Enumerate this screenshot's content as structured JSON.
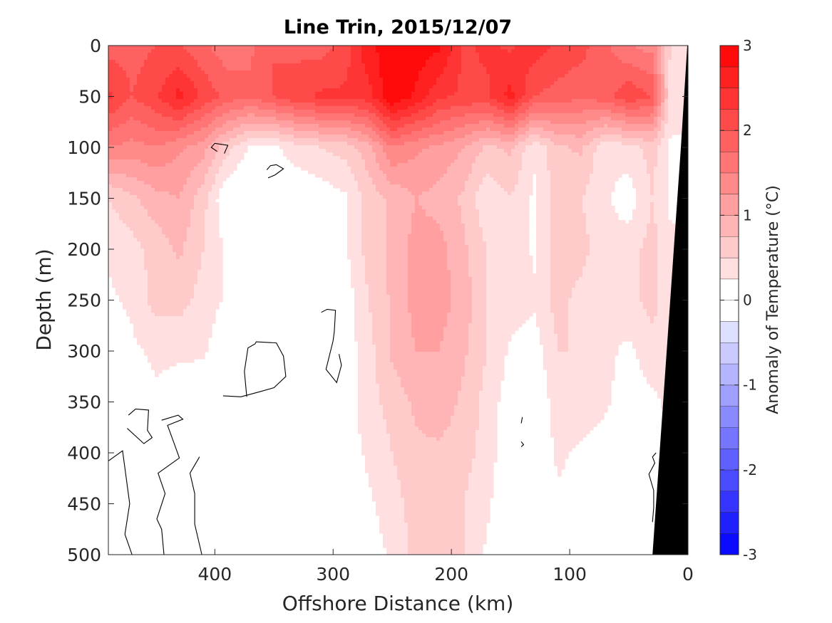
{
  "chart_data": {
    "type": "heatmap",
    "subtype": "filled-contour-section",
    "title": "Line Trin, 2015/12/07",
    "xlabel": "Offshore Distance (km)",
    "ylabel": "Depth (m)",
    "x_axis": {
      "reversed": true,
      "range": [
        490,
        0
      ],
      "ticks": [
        400,
        300,
        200,
        100,
        0
      ],
      "tick_labels": [
        "400",
        "300",
        "200",
        "100",
        "0"
      ]
    },
    "y_axis": {
      "reversed": true,
      "range": [
        0,
        500
      ],
      "ticks": [
        0,
        50,
        100,
        150,
        200,
        250,
        300,
        350,
        400,
        450,
        500
      ],
      "tick_labels": [
        "0",
        "50",
        "100",
        "150",
        "200",
        "250",
        "300",
        "350",
        "400",
        "450",
        "500"
      ]
    },
    "colorbar": {
      "label": "Anomaly of Temperature (°C)",
      "range": [
        -3,
        3
      ],
      "ticks": [
        3,
        2,
        1,
        0,
        -1,
        -2,
        -3
      ],
      "tick_labels": [
        "3",
        "2",
        "1",
        "0",
        "-1",
        "-2",
        "-3"
      ],
      "levels": [
        -3,
        -2.75,
        -2.5,
        -2.25,
        -2,
        -1.75,
        -1.5,
        -1.25,
        -1,
        -0.75,
        -0.5,
        -0.25,
        0,
        0.25,
        0.5,
        0.75,
        1,
        1.25,
        1.5,
        1.75,
        2,
        2.25,
        2.5,
        2.75,
        3
      ],
      "colormap": "blue-white-red"
    },
    "land_color": "#000000",
    "zero_contour_color": "#000000",
    "depths_m": [
      0,
      50,
      100,
      150,
      200,
      250,
      300,
      350,
      400,
      450,
      500
    ],
    "distances_km": [
      490,
      470,
      450,
      430,
      410,
      390,
      370,
      350,
      330,
      310,
      290,
      270,
      250,
      230,
      210,
      190,
      170,
      150,
      130,
      110,
      90,
      70,
      50,
      30,
      15
    ],
    "values_c": [
      [
        1.9,
        1.9,
        2.0,
        2.0,
        1.8,
        1.6,
        1.7,
        2.0,
        1.9,
        1.9,
        2.1,
        2.7,
        2.9,
        2.9,
        2.8,
        2.2,
        2.3,
        2.2,
        2.4,
        2.2,
        2.1,
        1.8,
        1.5,
        1.4,
        0.5
      ],
      [
        2.3,
        2.0,
        2.2,
        2.6,
        2.2,
        1.9,
        1.8,
        2.0,
        2.2,
        2.3,
        2.3,
        2.4,
        3.0,
        2.7,
        2.3,
        2.2,
        2.2,
        2.6,
        2.0,
        1.9,
        1.8,
        1.9,
        2.2,
        2.0,
        0.4
      ],
      [
        1.5,
        1.4,
        1.5,
        1.3,
        1.1,
        0.6,
        0.2,
        0.2,
        0.4,
        0.5,
        0.6,
        0.9,
        1.5,
        1.3,
        1.2,
        1.0,
        0.7,
        0.8,
        0.3,
        0.7,
        0.8,
        0.3,
        0.4,
        0.6,
        0.2
      ],
      [
        0.5,
        0.7,
        0.9,
        1.0,
        0.6,
        0.0,
        -0.1,
        0.0,
        0.0,
        0.1,
        0.2,
        0.6,
        0.8,
        1.0,
        0.9,
        0.7,
        0.3,
        0.5,
        0.2,
        0.6,
        0.5,
        0.3,
        0.1,
        0.5,
        0.2
      ],
      [
        0.3,
        0.4,
        0.6,
        0.8,
        0.5,
        0.2,
        0.1,
        0.0,
        0.0,
        0.1,
        0.2,
        0.6,
        0.8,
        1.1,
        1.1,
        0.8,
        0.5,
        0.5,
        0.2,
        0.6,
        0.6,
        0.3,
        0.4,
        0.6,
        0.3
      ],
      [
        0.2,
        0.3,
        0.6,
        0.6,
        0.4,
        0.2,
        0.1,
        0.0,
        0.0,
        0.1,
        0.1,
        0.5,
        0.8,
        1.1,
        1.1,
        0.9,
        0.5,
        0.4,
        0.3,
        0.6,
        0.4,
        0.3,
        0.4,
        0.6,
        0.3
      ],
      [
        0.1,
        0.2,
        0.3,
        0.3,
        0.3,
        0.0,
        0.1,
        -0.1,
        0.0,
        -0.1,
        0.1,
        0.4,
        0.8,
        1.0,
        1.0,
        0.8,
        0.5,
        0.2,
        0.1,
        0.5,
        0.5,
        0.3,
        0.2,
        0.4,
        0.3
      ],
      [
        0.0,
        0.1,
        0.2,
        0.1,
        0.0,
        0.0,
        0.0,
        0.0,
        0.1,
        0.0,
        0.1,
        0.4,
        0.6,
        0.8,
        0.9,
        0.7,
        0.4,
        0.1,
        0.0,
        0.4,
        0.4,
        0.3,
        0.1,
        0.2,
        0.3
      ],
      [
        -0.1,
        0.0,
        0.1,
        0.0,
        -0.1,
        0.0,
        0.0,
        0.1,
        0.1,
        0.0,
        0.1,
        0.3,
        0.5,
        0.7,
        0.7,
        0.6,
        0.4,
        0.0,
        0.0,
        0.3,
        0.2,
        0.1,
        0.0,
        0.2,
        0.2
      ],
      [
        -0.1,
        0.0,
        -0.1,
        0.0,
        -0.1,
        0.0,
        0.0,
        0.0,
        0.0,
        0.0,
        0.1,
        0.2,
        0.4,
        0.6,
        0.6,
        0.5,
        0.3,
        0.0,
        0.0,
        0.2,
        0.1,
        0.0,
        0.0,
        0.1,
        0.1
      ],
      [
        -0.1,
        -0.1,
        0.0,
        0.0,
        -0.1,
        0.0,
        -0.1,
        0.0,
        0.0,
        0.0,
        0.0,
        0.1,
        0.3,
        0.6,
        0.6,
        0.5,
        0.2,
        0.0,
        0.0,
        0.1,
        0.1,
        0.0,
        0.0,
        0.0,
        0.0
      ]
    ]
  }
}
